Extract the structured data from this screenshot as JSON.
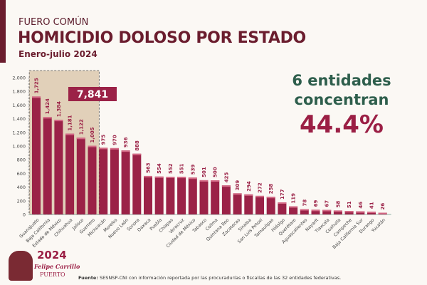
{
  "header": {
    "supertitle": "FUERO COMÚN",
    "title": "HOMICIDIO DOLOSO POR ESTADO",
    "subtitle": "Enero-julio 2024"
  },
  "callout": {
    "line1": "6 entidades",
    "line2": "concentran",
    "percent": "44.4%"
  },
  "highlight": {
    "total": "7,841",
    "count": 6,
    "fill": "#d8c3a5"
  },
  "footer": {
    "source_label": "Fuente:",
    "source_text": " SESNSP-CNI con información reportada por las procuradurías o fiscalías de las 32 entidades federativas."
  },
  "logo": {
    "year": "2024",
    "name": "Felipe Carrillo",
    "name2": "PUERTO"
  },
  "colors": {
    "bar": "#9b2247",
    "label": "#9b2247",
    "title": "#6b1d2e",
    "accent_green": "#2e5e4c"
  },
  "chart_data": {
    "type": "bar",
    "ylim": [
      0,
      2000
    ],
    "yticks": [
      0,
      200,
      400,
      600,
      800,
      1000,
      1200,
      1400,
      1600,
      1800,
      2000
    ],
    "ytick_labels": [
      "0",
      "200",
      "400",
      "600",
      "800",
      "1,000",
      "1,200",
      "1,400",
      "1,600",
      "1,800",
      "2,000"
    ],
    "categories": [
      "Guanajuato",
      "Baja California",
      "Estado de México",
      "Chihuahua",
      "Jalisco",
      "Guerrero",
      "Michoacán",
      "Morelos",
      "Nuevo León",
      "Sonora",
      "Oaxaca",
      "Puebla",
      "Chiapas",
      "Veracruz",
      "Ciudad de México",
      "Tabasco",
      "Colima",
      "Quintana Roo",
      "Zacatecas",
      "Sinaloa",
      "San Luis Potosí",
      "Tamaulipas",
      "Hidalgo",
      "Querétaro",
      "Aguascalientes",
      "Nayarit",
      "Tlaxcala",
      "Coahuila",
      "Campeche",
      "Baja California Sur",
      "Durango",
      "Yucatán"
    ],
    "values": [
      1725,
      1424,
      1384,
      1181,
      1122,
      1005,
      975,
      970,
      936,
      888,
      563,
      554,
      552,
      551,
      539,
      501,
      500,
      425,
      309,
      294,
      272,
      258,
      177,
      119,
      78,
      69,
      67,
      58,
      51,
      46,
      41,
      26
    ],
    "value_labels": [
      "1,725",
      "1,424",
      "1,384",
      "1,181",
      "1,122",
      "1,005",
      "975",
      "970",
      "936",
      "888",
      "563",
      "554",
      "552",
      "551",
      "539",
      "501",
      "500",
      "425",
      "309",
      "294",
      "272",
      "258",
      "177",
      "119",
      "78",
      "69",
      "67",
      "58",
      "51",
      "46",
      "41",
      "26"
    ]
  }
}
